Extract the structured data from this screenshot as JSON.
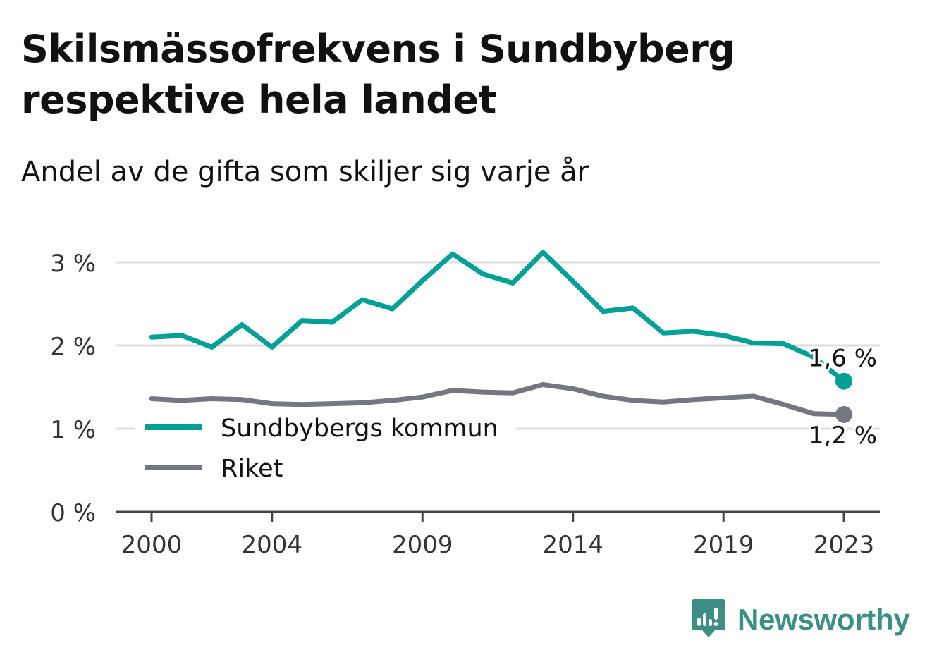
{
  "title": "Skilsmässofrekvens i Sundbyberg respektive hela landet",
  "subtitle": "Andel av de gifta som skiljer sig varje år",
  "brand": {
    "name": "Newsworthy",
    "icon": "newsworthy-bars-icon",
    "color": "#3d8f86"
  },
  "chart_data": {
    "type": "line",
    "x": [
      2000,
      2001,
      2002,
      2003,
      2004,
      2005,
      2006,
      2007,
      2008,
      2009,
      2010,
      2011,
      2012,
      2013,
      2014,
      2015,
      2016,
      2017,
      2018,
      2019,
      2020,
      2021,
      2022,
      2023
    ],
    "x_ticks": [
      2000,
      2004,
      2009,
      2014,
      2019,
      2023
    ],
    "y_ticks": [
      0,
      1,
      2,
      3
    ],
    "y_tick_labels": [
      "0 %",
      "1 %",
      "2 %",
      "3 %"
    ],
    "ylim": [
      0,
      3.2
    ],
    "grid": true,
    "legend_position": "bottom-left",
    "series": [
      {
        "name": "Sundbybergs kommun",
        "color": "#00a096",
        "end_label": "1,6 %",
        "values": [
          2.1,
          2.12,
          1.98,
          2.25,
          1.98,
          2.3,
          2.28,
          2.55,
          2.44,
          2.78,
          3.1,
          2.86,
          2.75,
          3.12,
          2.77,
          2.41,
          2.45,
          2.15,
          2.17,
          2.12,
          2.03,
          2.02,
          1.86,
          1.57
        ]
      },
      {
        "name": "Riket",
        "color": "#76767f",
        "end_label": "1,2 %",
        "values": [
          1.36,
          1.34,
          1.36,
          1.35,
          1.3,
          1.29,
          1.3,
          1.31,
          1.34,
          1.38,
          1.46,
          1.44,
          1.43,
          1.53,
          1.48,
          1.39,
          1.34,
          1.32,
          1.35,
          1.37,
          1.39,
          1.29,
          1.18,
          1.17
        ]
      }
    ]
  }
}
